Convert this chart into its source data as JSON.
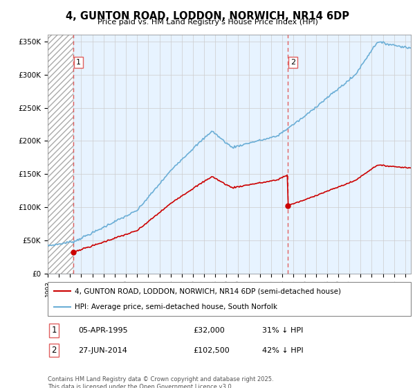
{
  "title": "4, GUNTON ROAD, LODDON, NORWICH, NR14 6DP",
  "subtitle": "Price paid vs. HM Land Registry's House Price Index (HPI)",
  "legend_line1": "4, GUNTON ROAD, LODDON, NORWICH, NR14 6DP (semi-detached house)",
  "legend_line2": "HPI: Average price, semi-detached house, South Norfolk",
  "purchase1_year": 1995.27,
  "purchase1_price": 32000,
  "purchase2_year": 2014.48,
  "purchase2_price": 102500,
  "footer": "Contains HM Land Registry data © Crown copyright and database right 2025.\nThis data is licensed under the Open Government Licence v3.0.",
  "hpi_color": "#6baed6",
  "price_color": "#cc0000",
  "vline_color": "#e06060",
  "ylim_max": 360000,
  "xlim_min": 1993.0,
  "xlim_max": 2025.5,
  "bg_fill_color": "#ddeeff",
  "hatch_color": "#bbbbbb"
}
